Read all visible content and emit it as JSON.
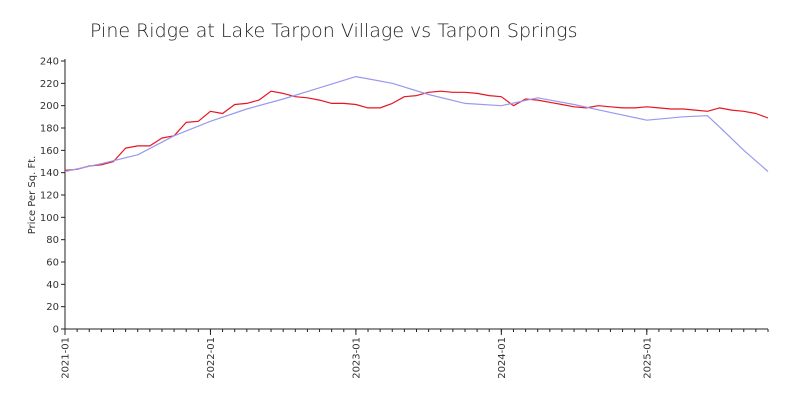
{
  "chart_data": {
    "type": "line",
    "title": "Pine Ridge at Lake Tarpon Village vs Tarpon Springs",
    "xlabel": "",
    "ylabel": "Price Per Sq. Ft.",
    "ylim": [
      0,
      240
    ],
    "yticks": [
      0,
      20,
      40,
      60,
      80,
      100,
      120,
      140,
      160,
      180,
      200,
      220,
      240
    ],
    "xlim": [
      "2021-01",
      "2025-11"
    ],
    "xticks": [
      "2021-01",
      "2022-01",
      "2023-01",
      "2024-01",
      "2025-01"
    ],
    "grid": false,
    "legend": "none",
    "series": [
      {
        "color": "#e8141f",
        "x": [
          "2021-01",
          "2021-02",
          "2021-03",
          "2021-04",
          "2021-05",
          "2021-06",
          "2021-07",
          "2021-08",
          "2021-09",
          "2021-10",
          "2021-11",
          "2021-12",
          "2022-01",
          "2022-02",
          "2022-03",
          "2022-04",
          "2022-05",
          "2022-06",
          "2022-07",
          "2022-08",
          "2022-09",
          "2022-10",
          "2022-11",
          "2022-12",
          "2023-01",
          "2023-02",
          "2023-03",
          "2023-04",
          "2023-05",
          "2023-06",
          "2023-07",
          "2023-08",
          "2023-09",
          "2023-10",
          "2023-11",
          "2023-12",
          "2024-01",
          "2024-02",
          "2024-03",
          "2024-04",
          "2024-05",
          "2024-06",
          "2024-07",
          "2024-08",
          "2024-09",
          "2024-10",
          "2024-11",
          "2024-12",
          "2025-01",
          "2025-02",
          "2025-03",
          "2025-04",
          "2025-05",
          "2025-06",
          "2025-07",
          "2025-08",
          "2025-09",
          "2025-10",
          "2025-11"
        ],
        "values": [
          142,
          143,
          146,
          147,
          150,
          162,
          164,
          164,
          171,
          173,
          185,
          186,
          195,
          193,
          201,
          202,
          205,
          213,
          211,
          208,
          207,
          205,
          202,
          202,
          201,
          198,
          198,
          202,
          208,
          209,
          212,
          213,
          212,
          212,
          211,
          209,
          208,
          200,
          206,
          205,
          203,
          201,
          199,
          198,
          200,
          199,
          198,
          198,
          199,
          198,
          197,
          197,
          196,
          195,
          198,
          196,
          195,
          193,
          189
        ]
      },
      {
        "color": "#9999ee",
        "x": [
          "2021-01",
          "2021-04",
          "2021-07",
          "2021-10",
          "2022-01",
          "2022-04",
          "2022-07",
          "2022-10",
          "2023-01",
          "2023-04",
          "2023-07",
          "2023-10",
          "2024-01",
          "2024-04",
          "2024-07",
          "2024-10",
          "2025-01",
          "2025-04",
          "2025-06",
          "2025-07",
          "2025-09",
          "2025-11"
        ],
        "values": [
          141,
          148,
          156,
          173,
          186,
          197,
          206,
          216,
          226,
          220,
          210,
          202,
          200,
          207,
          201,
          194,
          187,
          190,
          191,
          181,
          160,
          141
        ]
      }
    ]
  }
}
